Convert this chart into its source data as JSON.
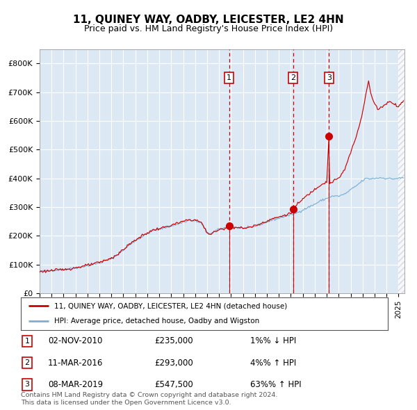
{
  "title": "11, QUINEY WAY, OADBY, LEICESTER, LE2 4HN",
  "subtitle": "Price paid vs. HM Land Registry's House Price Index (HPI)",
  "legend_line1": "11, QUINEY WAY, OADBY, LEICESTER, LE2 4HN (detached house)",
  "legend_line2": "HPI: Average price, detached house, Oadby and Wigston",
  "footer1": "Contains HM Land Registry data © Crown copyright and database right 2024.",
  "footer2": "This data is licensed under the Open Government Licence v3.0.",
  "transactions": [
    {
      "num": 1,
      "date": "02-NOV-2010",
      "price": 235000,
      "pct": "1%",
      "dir": "↓"
    },
    {
      "num": 2,
      "date": "11-MAR-2016",
      "price": 293000,
      "pct": "4%",
      "dir": "↑"
    },
    {
      "num": 3,
      "date": "08-MAR-2019",
      "price": 547500,
      "pct": "63%",
      "dir": "↑"
    }
  ],
  "transaction_dates_decimal": [
    2010.836,
    2016.192,
    2019.183
  ],
  "transaction_prices": [
    235000,
    293000,
    547500
  ],
  "ylim": [
    0,
    850000
  ],
  "yticks": [
    0,
    100000,
    200000,
    300000,
    400000,
    500000,
    600000,
    700000,
    800000
  ],
  "ytick_labels": [
    "£0",
    "£100K",
    "£200K",
    "£300K",
    "£400K",
    "£500K",
    "£600K",
    "£700K",
    "£800K"
  ],
  "xlim_start": 1995.0,
  "xlim_end": 2025.5,
  "plot_bg": "#dce9f5",
  "red_line_color": "#cc0000",
  "blue_line_color": "#7bafd4",
  "dashed_color": "#cc0000",
  "dot_color": "#cc0000",
  "grid_color": "#ffffff",
  "title_color": "#000000",
  "box_color": "#cc0000",
  "shade_start": 2010.836
}
